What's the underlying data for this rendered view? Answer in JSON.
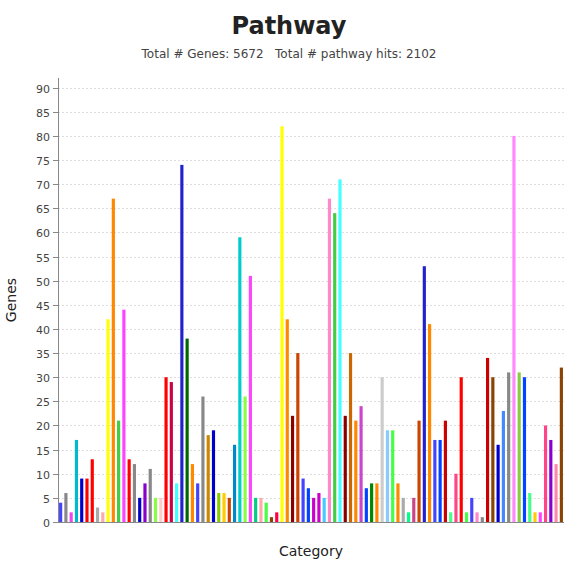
{
  "chart_data": {
    "type": "bar",
    "title": "Pathway",
    "subtitle": "Total # Genes: 5672   Total # pathway hits: 2102",
    "xlabel": "Category",
    "ylabel": "Genes",
    "categories": [
      null,
      null,
      null,
      null,
      null,
      null,
      null,
      null,
      null,
      null,
      null,
      null,
      null,
      null,
      null,
      null,
      null,
      null,
      null,
      null,
      null,
      null,
      null,
      null,
      null,
      null,
      null,
      null,
      null,
      null,
      null,
      null,
      null,
      null,
      null,
      null,
      null,
      null,
      null,
      null,
      null,
      null,
      null,
      null,
      null,
      null,
      null,
      null,
      null,
      null,
      null,
      null,
      null,
      null,
      null,
      null,
      null,
      null,
      null,
      null,
      null,
      null,
      null,
      null,
      null,
      null,
      null,
      null,
      null,
      null,
      null,
      null,
      null,
      null,
      null,
      null,
      null,
      null,
      null,
      null,
      null,
      null,
      null,
      null,
      null,
      null,
      null,
      null,
      null,
      null,
      null,
      null,
      null,
      null,
      null,
      null
    ],
    "values": [
      4,
      6,
      2,
      17,
      9,
      9,
      13,
      3,
      2,
      42,
      67,
      21,
      44,
      13,
      12,
      5,
      8,
      11,
      5,
      5,
      30,
      29,
      8,
      74,
      38,
      12,
      8,
      26,
      18,
      19,
      6,
      6,
      5,
      16,
      59,
      26,
      51,
      5,
      5,
      4,
      1,
      2,
      82,
      42,
      22,
      35,
      9,
      7,
      5,
      6,
      5,
      67,
      64,
      71,
      22,
      35,
      21,
      24,
      7,
      8,
      8,
      30,
      19,
      19,
      8,
      5,
      2,
      5,
      21,
      53,
      41,
      17,
      17,
      21,
      2,
      10,
      30,
      2,
      5,
      2,
      1,
      34,
      30,
      16,
      23,
      31,
      80,
      31,
      30,
      6,
      2,
      2,
      20,
      17,
      12,
      32
    ],
    "colors": [
      "#4444ff",
      "#888888",
      "#ee44ee",
      "#00bbcc",
      "#0000cc",
      "#ff0000",
      "#ff0000",
      "#aaaaaa",
      "#ffaaaa",
      "#ffff00",
      "#ff8800",
      "#44cc44",
      "#ff44ff",
      "#ff0000",
      "#888888",
      "#0000cc",
      "#8800cc",
      "#888888",
      "#88ff44",
      "#ffcccc",
      "#ff0000",
      "#cc0044",
      "#44ffff",
      "#2222cc",
      "#006600",
      "#ff8800",
      "#4444ff",
      "#888888",
      "#cc8800",
      "#0000cc",
      "#88cc00",
      "#ffcc00",
      "#cc4400",
      "#0088cc",
      "#00cccc",
      "#88ff44",
      "#ff44ff",
      "#00cc88",
      "#ffaaaa",
      "#44ff44",
      "#884400",
      "#ff0044",
      "#ffff00",
      "#ff8800",
      "#880000",
      "#cc4400",
      "#4444ff",
      "#0044ff",
      "#cc00cc",
      "#cc00cc",
      "#44ccff",
      "#ff88cc",
      "#44cc44",
      "#44ffff",
      "#880000",
      "#cc6600",
      "#ff8800",
      "#cc44cc",
      "#0044ff",
      "#008800",
      "#ff8800",
      "#cccccc",
      "#88ccff",
      "#44ff44",
      "#ff8800",
      "#aaaaaa",
      "#00ff88",
      "#cc4488",
      "#cc4400",
      "#2222cc",
      "#ff8800",
      "#4444ff",
      "#0044ff",
      "#cc0000",
      "#44ff88",
      "#ff4488",
      "#ff0000",
      "#44ff44",
      "#4444ff",
      "#ff88cc",
      "#888888",
      "#cc0000",
      "#884400",
      "#0000cc",
      "#4488ff",
      "#888888",
      "#ff88ff",
      "#88cc44",
      "#0044ff",
      "#44ff88",
      "#ffcc00",
      "#ff44ff",
      "#ff4488",
      "#8800cc",
      "#ff88aa",
      "#884400"
    ],
    "ylim": [
      0,
      92
    ],
    "yticks": [
      0,
      5,
      10,
      15,
      20,
      25,
      30,
      35,
      40,
      45,
      50,
      55,
      60,
      65,
      70,
      75,
      80,
      85,
      90
    ],
    "grid": true,
    "tick_labels": "y"
  }
}
